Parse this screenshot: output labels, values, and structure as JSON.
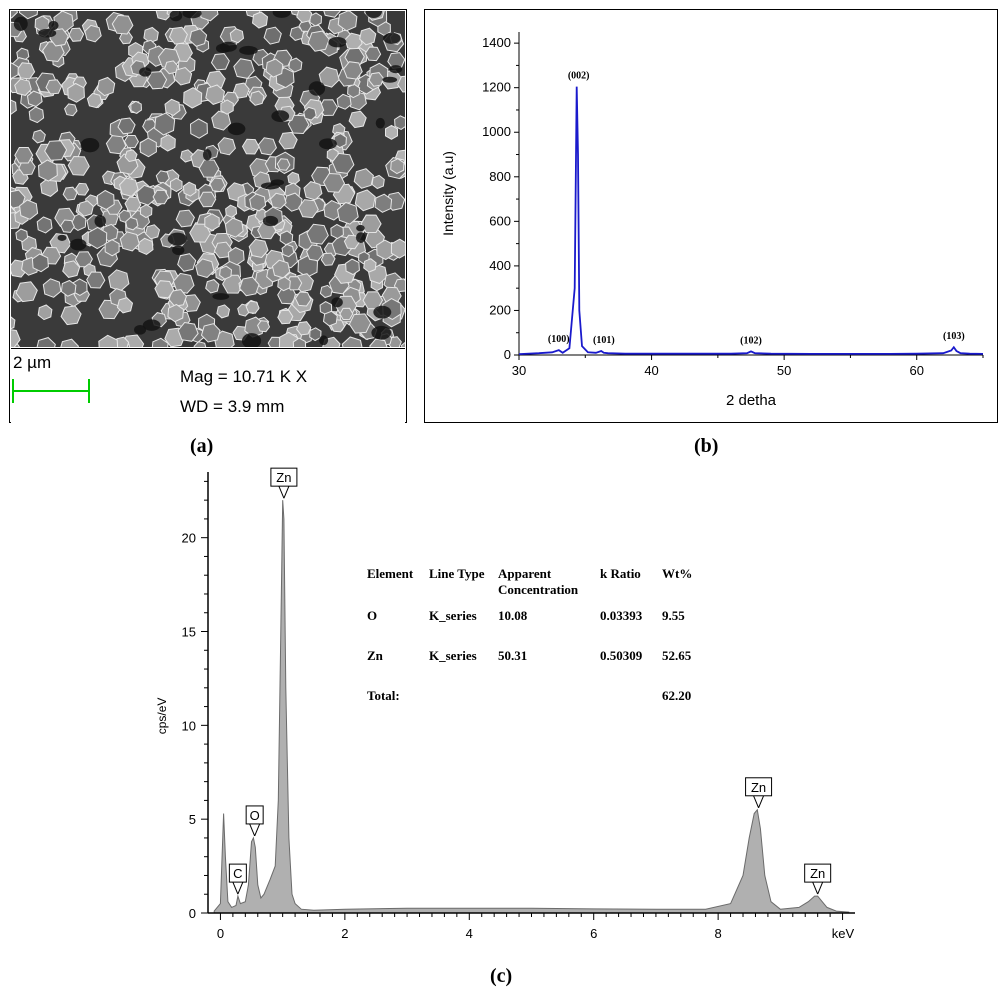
{
  "panels": {
    "a": {
      "label": "(a)",
      "scale_bar_label": "2 µm",
      "mag_text": "Mag =  10.71 K X",
      "wd_text": "WD =  3.9 mm",
      "scale_bar_color": "#00cc00"
    },
    "b": {
      "label": "(b)"
    },
    "c": {
      "label": "(c)"
    }
  },
  "chart_data": [
    {
      "type": "line",
      "xlabel": "2 detha",
      "ylabel": "Intensity (a.u)",
      "xlim": [
        30,
        65
      ],
      "ylim": [
        0,
        1450
      ],
      "xticks": [
        30,
        40,
        50,
        60
      ],
      "yticks": [
        0,
        200,
        400,
        600,
        800,
        1000,
        1200,
        1400
      ],
      "line_color": "#1a1acc",
      "series": [
        {
          "x": [
            30,
            31.5,
            32.5,
            33.0,
            33.3,
            33.8,
            34.2,
            34.35,
            34.45,
            34.55,
            34.75,
            35.2,
            35.8,
            36.2,
            36.4,
            36.7,
            38,
            40,
            42,
            44,
            46,
            47.2,
            47.5,
            47.8,
            49,
            52,
            55,
            58,
            60,
            62,
            62.6,
            62.8,
            63.0,
            63.3,
            64,
            65
          ],
          "y": [
            4,
            8,
            12,
            22,
            10,
            30,
            300,
            1205,
            900,
            200,
            40,
            12,
            10,
            18,
            10,
            8,
            6,
            6,
            6,
            6,
            6,
            8,
            16,
            8,
            6,
            5,
            5,
            5,
            6,
            8,
            20,
            35,
            18,
            8,
            6,
            5
          ]
        }
      ],
      "annotations": [
        {
          "text": "(100)",
          "x": 33.0,
          "y": 22
        },
        {
          "text": "(002)",
          "x": 34.5,
          "y": 1205
        },
        {
          "text": "(101)",
          "x": 36.4,
          "y": 18
        },
        {
          "text": "(102)",
          "x": 47.5,
          "y": 16
        },
        {
          "text": "(103)",
          "x": 62.8,
          "y": 35
        }
      ]
    },
    {
      "type": "area",
      "xlabel": "keV",
      "ylabel": "cps/eV",
      "xlim": [
        -0.2,
        10.2
      ],
      "ylim": [
        0,
        23.5
      ],
      "xticks": [
        0,
        2,
        4,
        6,
        8
      ],
      "yticks": [
        0,
        5,
        10,
        15,
        20
      ],
      "fill_color": "#b0b0b0",
      "series": [
        {
          "x": [
            -0.1,
            0.0,
            0.05,
            0.08,
            0.12,
            0.18,
            0.25,
            0.28,
            0.32,
            0.4,
            0.45,
            0.5,
            0.53,
            0.56,
            0.6,
            0.65,
            0.7,
            0.8,
            0.88,
            0.93,
            0.97,
            1.0,
            1.02,
            1.05,
            1.1,
            1.15,
            1.2,
            1.3,
            1.5,
            2.0,
            3.0,
            4.0,
            5.0,
            6.0,
            7.0,
            7.8,
            8.2,
            8.4,
            8.5,
            8.58,
            8.63,
            8.68,
            8.75,
            8.85,
            9.0,
            9.3,
            9.45,
            9.55,
            9.6,
            9.65,
            9.75,
            9.9,
            10.1
          ],
          "y": [
            0.1,
            0.5,
            5.3,
            3.0,
            0.6,
            0.3,
            0.4,
            0.9,
            0.5,
            0.6,
            1.5,
            3.8,
            4.0,
            3.5,
            1.5,
            0.8,
            1.0,
            1.8,
            2.5,
            6.0,
            15.0,
            22.0,
            21.0,
            12.0,
            4.0,
            1.0,
            0.5,
            0.2,
            0.15,
            0.2,
            0.25,
            0.25,
            0.25,
            0.22,
            0.2,
            0.2,
            0.5,
            2.0,
            4.0,
            5.3,
            5.5,
            4.5,
            2.0,
            0.6,
            0.2,
            0.3,
            0.6,
            0.9,
            0.9,
            0.7,
            0.3,
            0.1,
            0.05
          ]
        }
      ],
      "peak_labels": [
        {
          "text": "C",
          "x": 0.28,
          "y": 0.9
        },
        {
          "text": "O",
          "x": 0.55,
          "y": 4.0
        },
        {
          "text": "Zn",
          "x": 1.02,
          "y": 22.0
        },
        {
          "text": "Zn",
          "x": 8.65,
          "y": 5.5
        },
        {
          "text": "Zn",
          "x": 9.6,
          "y": 0.9
        }
      ]
    }
  ],
  "eds_table": {
    "headers": [
      "Element",
      "Line Type",
      "Apparent Concentration",
      "k Ratio",
      "Wt%"
    ],
    "header_line1": [
      "Element",
      "Line Type",
      "Apparent",
      "k Ratio",
      "Wt%"
    ],
    "header_line2": [
      "",
      "",
      "Concentration",
      "",
      ""
    ],
    "rows": [
      {
        "element": "O",
        "line_type": "K_series",
        "apparent": "10.08",
        "k_ratio": "0.03393",
        "wt": "9.55"
      },
      {
        "element": "Zn",
        "line_type": "K_series",
        "apparent": "50.31",
        "k_ratio": "0.50309",
        "wt": "52.65"
      }
    ],
    "total_label": "Total:",
    "total_value": "62.20"
  }
}
